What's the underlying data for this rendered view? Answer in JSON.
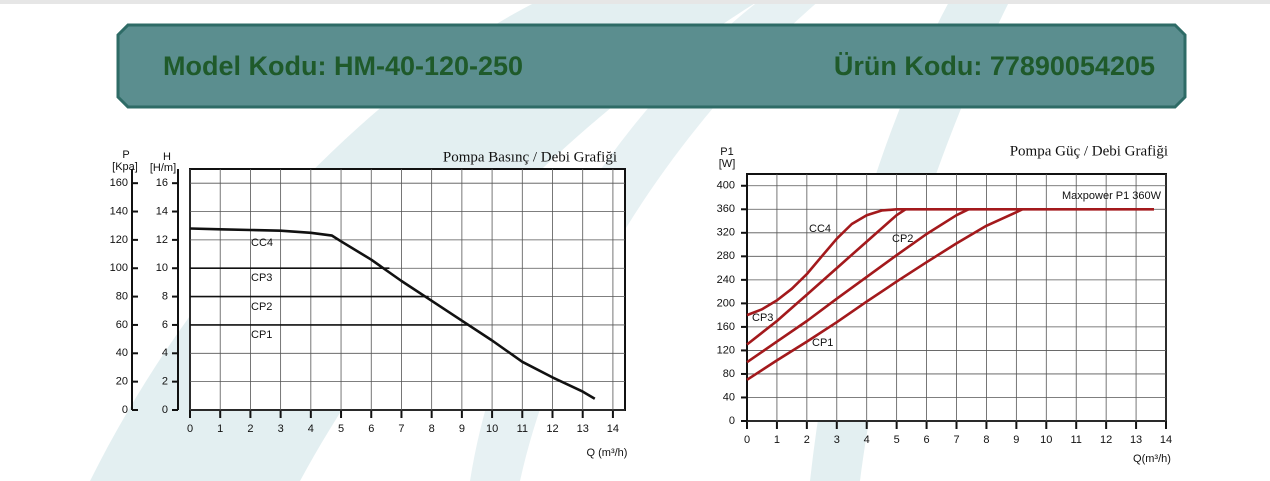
{
  "header": {
    "left": "Model Kodu: HM-40-120-250",
    "right": "Ürün Kodu: 77890054205"
  },
  "chart_data": [
    {
      "type": "line",
      "title": "Pompa Basınç / Debi Grafiği",
      "ylabel": "H",
      "yunit": "[H/m]",
      "y2label": "P",
      "y2unit": "[Kpa]",
      "xlabel": "Q (m³/h)",
      "xlim": [
        0,
        14.4
      ],
      "xticks": [
        0,
        1,
        2,
        3,
        4,
        5,
        6,
        7,
        8,
        9,
        10,
        11,
        12,
        13,
        14
      ],
      "ylim": [
        0,
        17
      ],
      "yticks": [
        0,
        2,
        4,
        6,
        8,
        10,
        12,
        14,
        16
      ],
      "y2lim": [
        0,
        170
      ],
      "y2ticks": [
        0,
        20,
        40,
        60,
        80,
        100,
        120,
        140,
        160
      ],
      "grid": true,
      "series": [
        {
          "name": "CC4",
          "color": "#111111",
          "x": [
            0,
            1,
            2,
            3,
            4,
            4.7,
            5,
            6,
            7,
            8,
            9,
            10,
            11,
            12,
            13,
            13.4
          ],
          "values": [
            12.8,
            12.75,
            12.7,
            12.65,
            12.5,
            12.3,
            11.9,
            10.6,
            9.1,
            7.7,
            6.3,
            4.9,
            3.4,
            2.3,
            1.3,
            0.8
          ]
        },
        {
          "name": "CP3",
          "color": "#111111",
          "x": [
            0,
            6.6
          ],
          "values": [
            10,
            10
          ]
        },
        {
          "name": "CP2",
          "color": "#111111",
          "x": [
            0,
            7.9
          ],
          "values": [
            8,
            8
          ]
        },
        {
          "name": "CP1",
          "color": "#111111",
          "x": [
            0,
            9.2
          ],
          "values": [
            6,
            6
          ]
        }
      ]
    },
    {
      "type": "line",
      "title": "Pompa Güç / Debi Grafiği",
      "ylabel": "P1",
      "yunit": "[W]",
      "xlabel": "Q(m³/h)",
      "annotation": "Maxpower P1  360W",
      "xlim": [
        0,
        14
      ],
      "xticks": [
        0,
        1,
        2,
        3,
        4,
        5,
        6,
        7,
        8,
        9,
        10,
        11,
        12,
        13,
        14
      ],
      "ylim": [
        0,
        420
      ],
      "yticks": [
        0,
        40,
        80,
        120,
        160,
        200,
        240,
        280,
        320,
        360,
        400
      ],
      "grid": true,
      "series": [
        {
          "name": "CC4",
          "color": "#a3191c",
          "x": [
            0,
            0.5,
            1,
            1.5,
            2,
            2.5,
            3,
            3.5,
            4,
            4.5,
            5,
            13.6
          ],
          "values": [
            180,
            190,
            205,
            225,
            250,
            280,
            310,
            335,
            350,
            358,
            360,
            360
          ]
        },
        {
          "name": "CP3",
          "color": "#a3191c",
          "x": [
            0,
            1,
            2,
            3,
            4,
            5,
            5.3
          ],
          "values": [
            130,
            170,
            215,
            260,
            305,
            350,
            360
          ]
        },
        {
          "name": "CP2",
          "color": "#a3191c",
          "x": [
            0,
            1,
            2,
            3,
            4,
            5,
            6,
            7,
            7.4
          ],
          "values": [
            100,
            135,
            170,
            208,
            245,
            282,
            318,
            350,
            360
          ]
        },
        {
          "name": "CP1",
          "color": "#a3191c",
          "x": [
            0,
            1,
            2,
            3,
            4,
            5,
            6,
            7,
            8,
            9,
            9.2
          ],
          "values": [
            70,
            103,
            135,
            168,
            203,
            237,
            270,
            302,
            332,
            355,
            360
          ]
        }
      ]
    }
  ]
}
